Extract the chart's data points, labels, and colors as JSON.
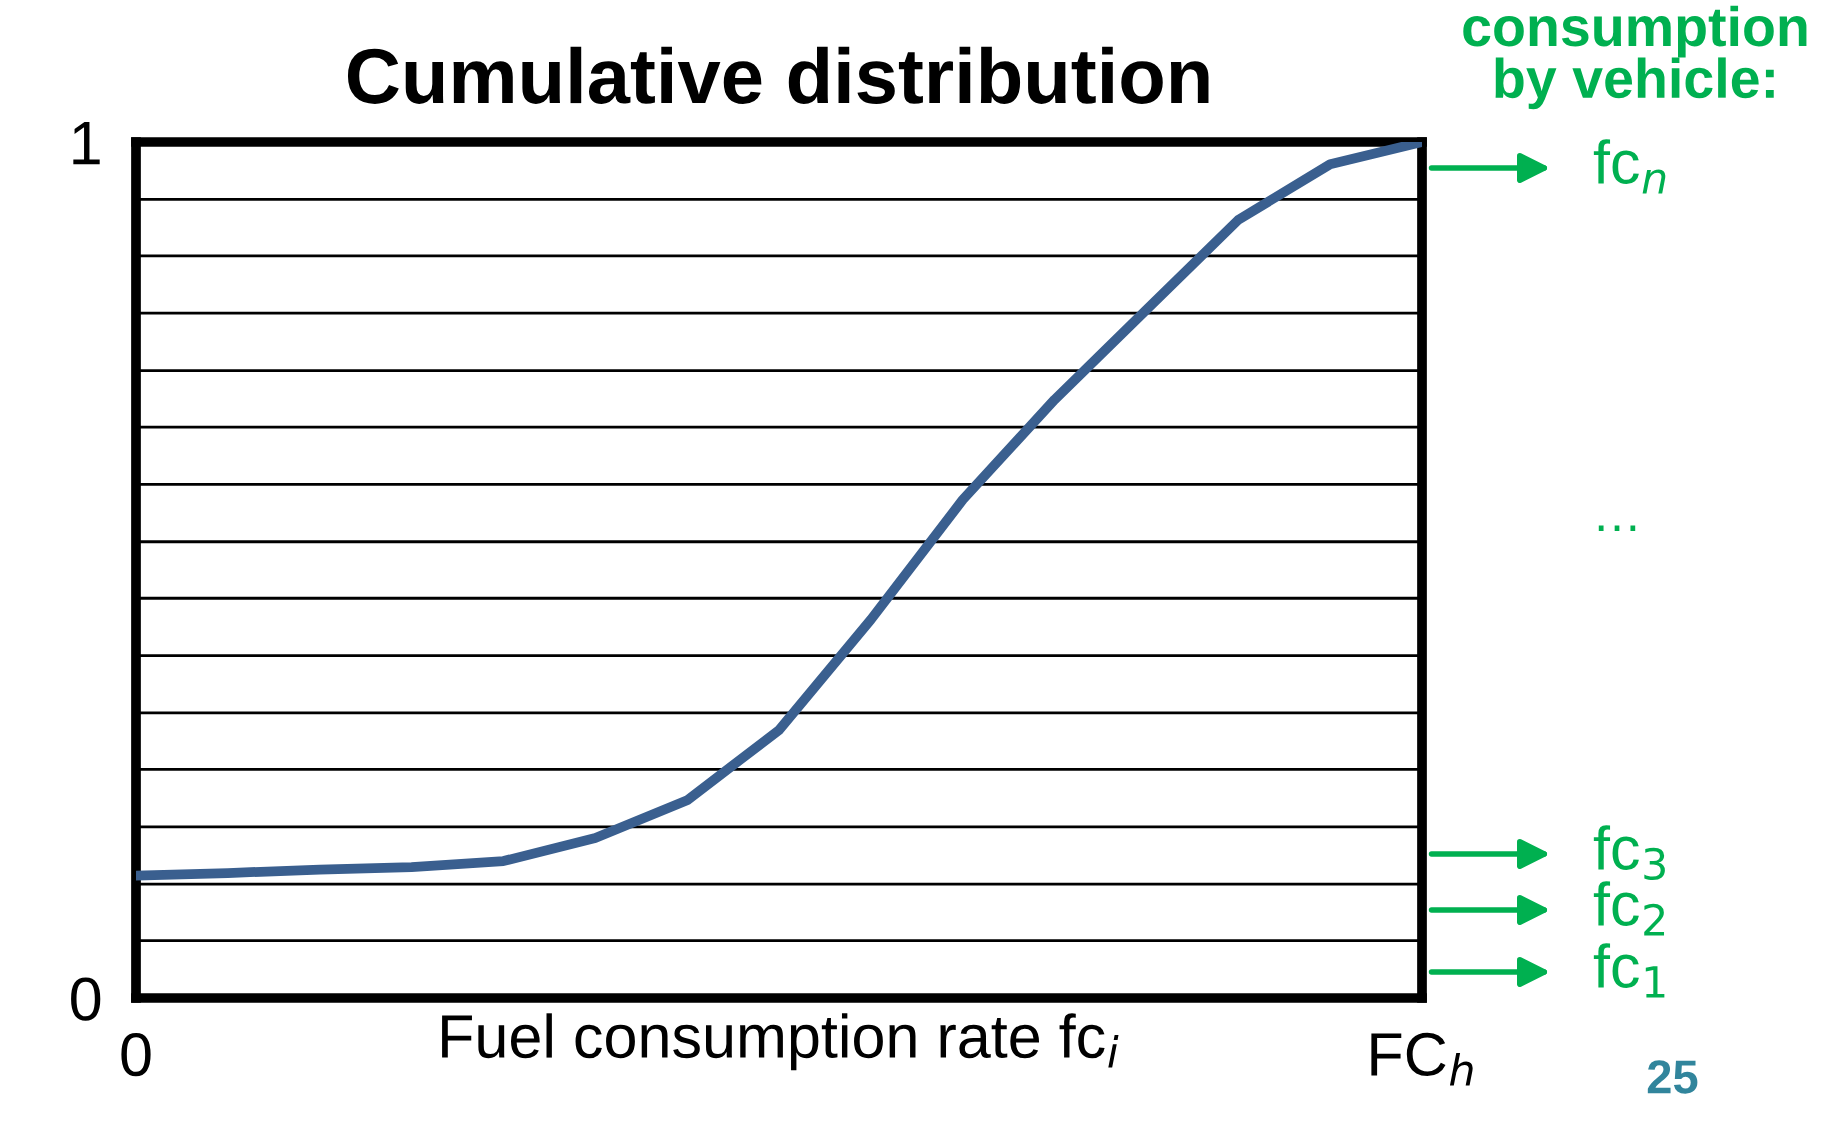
{
  "chart_data": {
    "type": "line",
    "title": "Cumulative distribution",
    "xlabel": "Fuel consumption rate fc$_{i}$",
    "categories": [
      "0",
      null,
      null,
      null,
      null,
      null,
      null,
      null,
      null,
      null,
      null,
      null,
      null,
      null,
      "FC$_{h}$"
    ],
    "series": [
      {
        "color": "#3a5f8f",
        "values": [
          0.143,
          0.146,
          0.15,
          0.153,
          0.16,
          0.187,
          0.231,
          0.313,
          0.442,
          0.582,
          0.699,
          0.804,
          0.909,
          0.974,
          1
        ]
      }
    ],
    "ylim": [
      0,
      1
    ],
    "yticks": [
      0,
      {
        "value": 0.067,
        "label": null
      },
      {
        "value": 0.133,
        "label": null
      },
      {
        "value": 0.2,
        "label": null
      },
      {
        "value": 0.267,
        "label": null
      },
      {
        "value": 0.333,
        "label": null
      },
      {
        "value": 0.4,
        "label": null
      },
      {
        "value": 0.467,
        "label": null
      },
      {
        "value": 0.533,
        "label": null
      },
      {
        "value": 0.6,
        "label": null
      },
      {
        "value": 0.667,
        "label": null
      },
      {
        "value": 0.733,
        "label": null
      },
      {
        "value": 0.8,
        "label": null
      },
      {
        "value": 0.867,
        "label": null
      },
      {
        "value": 0.933,
        "label": null
      },
      1
    ],
    "grid": "y",
    "marker": "none",
    "line_style": "solid",
    "legend": false,
    "annotations": [
      "consumption\nby vehicle:",
      "…",
      "25",
      "fc$_{n}$",
      "fc$_{3}$",
      "fc$_{2}$",
      "fc$_{1}$"
    ]
  }
}
